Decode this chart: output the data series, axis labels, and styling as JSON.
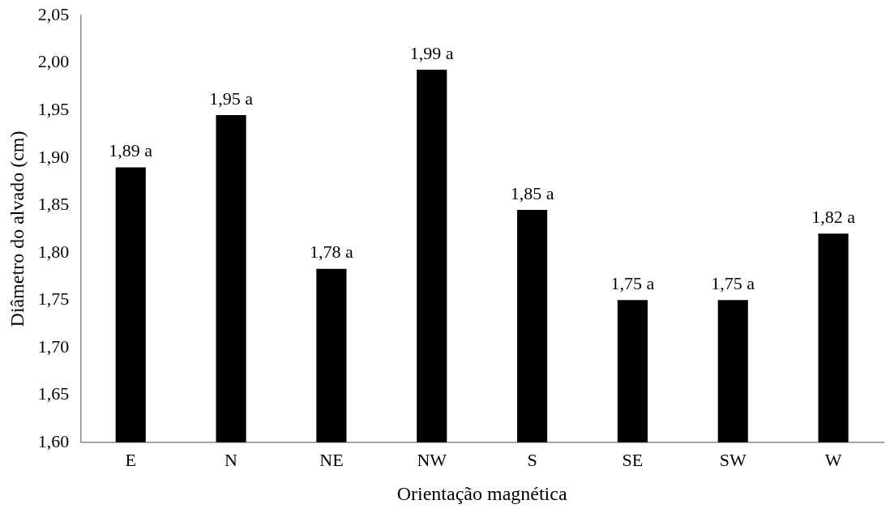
{
  "chart_data": {
    "type": "bar",
    "xlabel": "Orientação magnética",
    "ylabel": "Diâmetro do alvado (cm)",
    "categories": [
      "E",
      "N",
      "NE",
      "NW",
      "S",
      "SE",
      "SW",
      "W"
    ],
    "values": [
      1.89,
      1.945,
      1.783,
      1.993,
      1.845,
      1.75,
      1.75,
      1.82
    ],
    "value_labels": [
      "1,89 a",
      "1,95 a",
      "1,78 a",
      "1,99 a",
      "1,85 a",
      "1,75 a",
      "1,75 a",
      "1,82 a"
    ],
    "color": "#000000",
    "ylim": [
      1.6,
      2.05
    ],
    "yticks": [
      {
        "value": 1.6,
        "label": "1,60"
      },
      {
        "value": 1.65,
        "label": "1,65"
      },
      {
        "value": 1.7,
        "label": "1,70"
      },
      {
        "value": 1.75,
        "label": "1,75"
      },
      {
        "value": 1.8,
        "label": "1,80"
      },
      {
        "value": 1.85,
        "label": "1,85"
      },
      {
        "value": 1.9,
        "label": "1,90"
      },
      {
        "value": 1.95,
        "label": "1,95"
      },
      {
        "value": 2.0,
        "label": "2,00"
      },
      {
        "value": 2.05,
        "label": "2,05"
      }
    ],
    "grid": false,
    "legend": false
  }
}
